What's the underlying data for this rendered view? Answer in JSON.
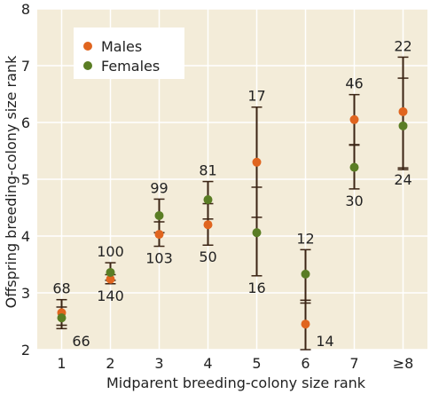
{
  "chart_data": {
    "type": "scatter",
    "xlabel": "Midparent breeding-colony size rank",
    "ylabel": "Offspring breeding-colony size rank",
    "categories": [
      "1",
      "2",
      "3",
      "4",
      "5",
      "6",
      "7",
      "≥8"
    ],
    "yticks": [
      "2",
      "3",
      "4",
      "5",
      "6",
      "7",
      "8"
    ],
    "ylim": [
      2,
      8
    ],
    "grid": true,
    "legend_position": "top-left",
    "background": "#f3ecd9",
    "grid_color": "#ffffff",
    "series": [
      {
        "name": "Males",
        "color": "#e0651f",
        "values": [
          2.65,
          3.24,
          4.03,
          4.2,
          5.3,
          2.45,
          6.05,
          6.19
        ],
        "lower": [
          2.43,
          3.16,
          3.82,
          3.84,
          4.33,
          2.0,
          5.6,
          5.17
        ],
        "upper": [
          2.88,
          3.32,
          4.25,
          4.57,
          6.27,
          2.87,
          6.49,
          7.15
        ],
        "n": [
          "68",
          "140",
          "103",
          "50",
          "17",
          "14",
          "46",
          "22"
        ],
        "n_side": [
          "above",
          "below",
          "below",
          "below",
          "above",
          "below",
          "above",
          "above"
        ]
      },
      {
        "name": "Females",
        "color": "#5a7d24",
        "values": [
          2.56,
          3.36,
          4.36,
          4.64,
          4.06,
          3.33,
          5.21,
          5.94
        ],
        "lower": [
          2.37,
          3.22,
          4.06,
          4.3,
          3.3,
          2.82,
          4.83,
          5.2
        ],
        "upper": [
          2.75,
          3.53,
          4.65,
          4.96,
          4.86,
          3.76,
          5.61,
          6.78
        ],
        "n": [
          "66",
          "100",
          "99",
          "81",
          "16",
          "12",
          "30",
          "24"
        ],
        "n_side": [
          "below",
          "above",
          "above",
          "above",
          "below",
          "above",
          "below",
          "below"
        ]
      }
    ]
  }
}
